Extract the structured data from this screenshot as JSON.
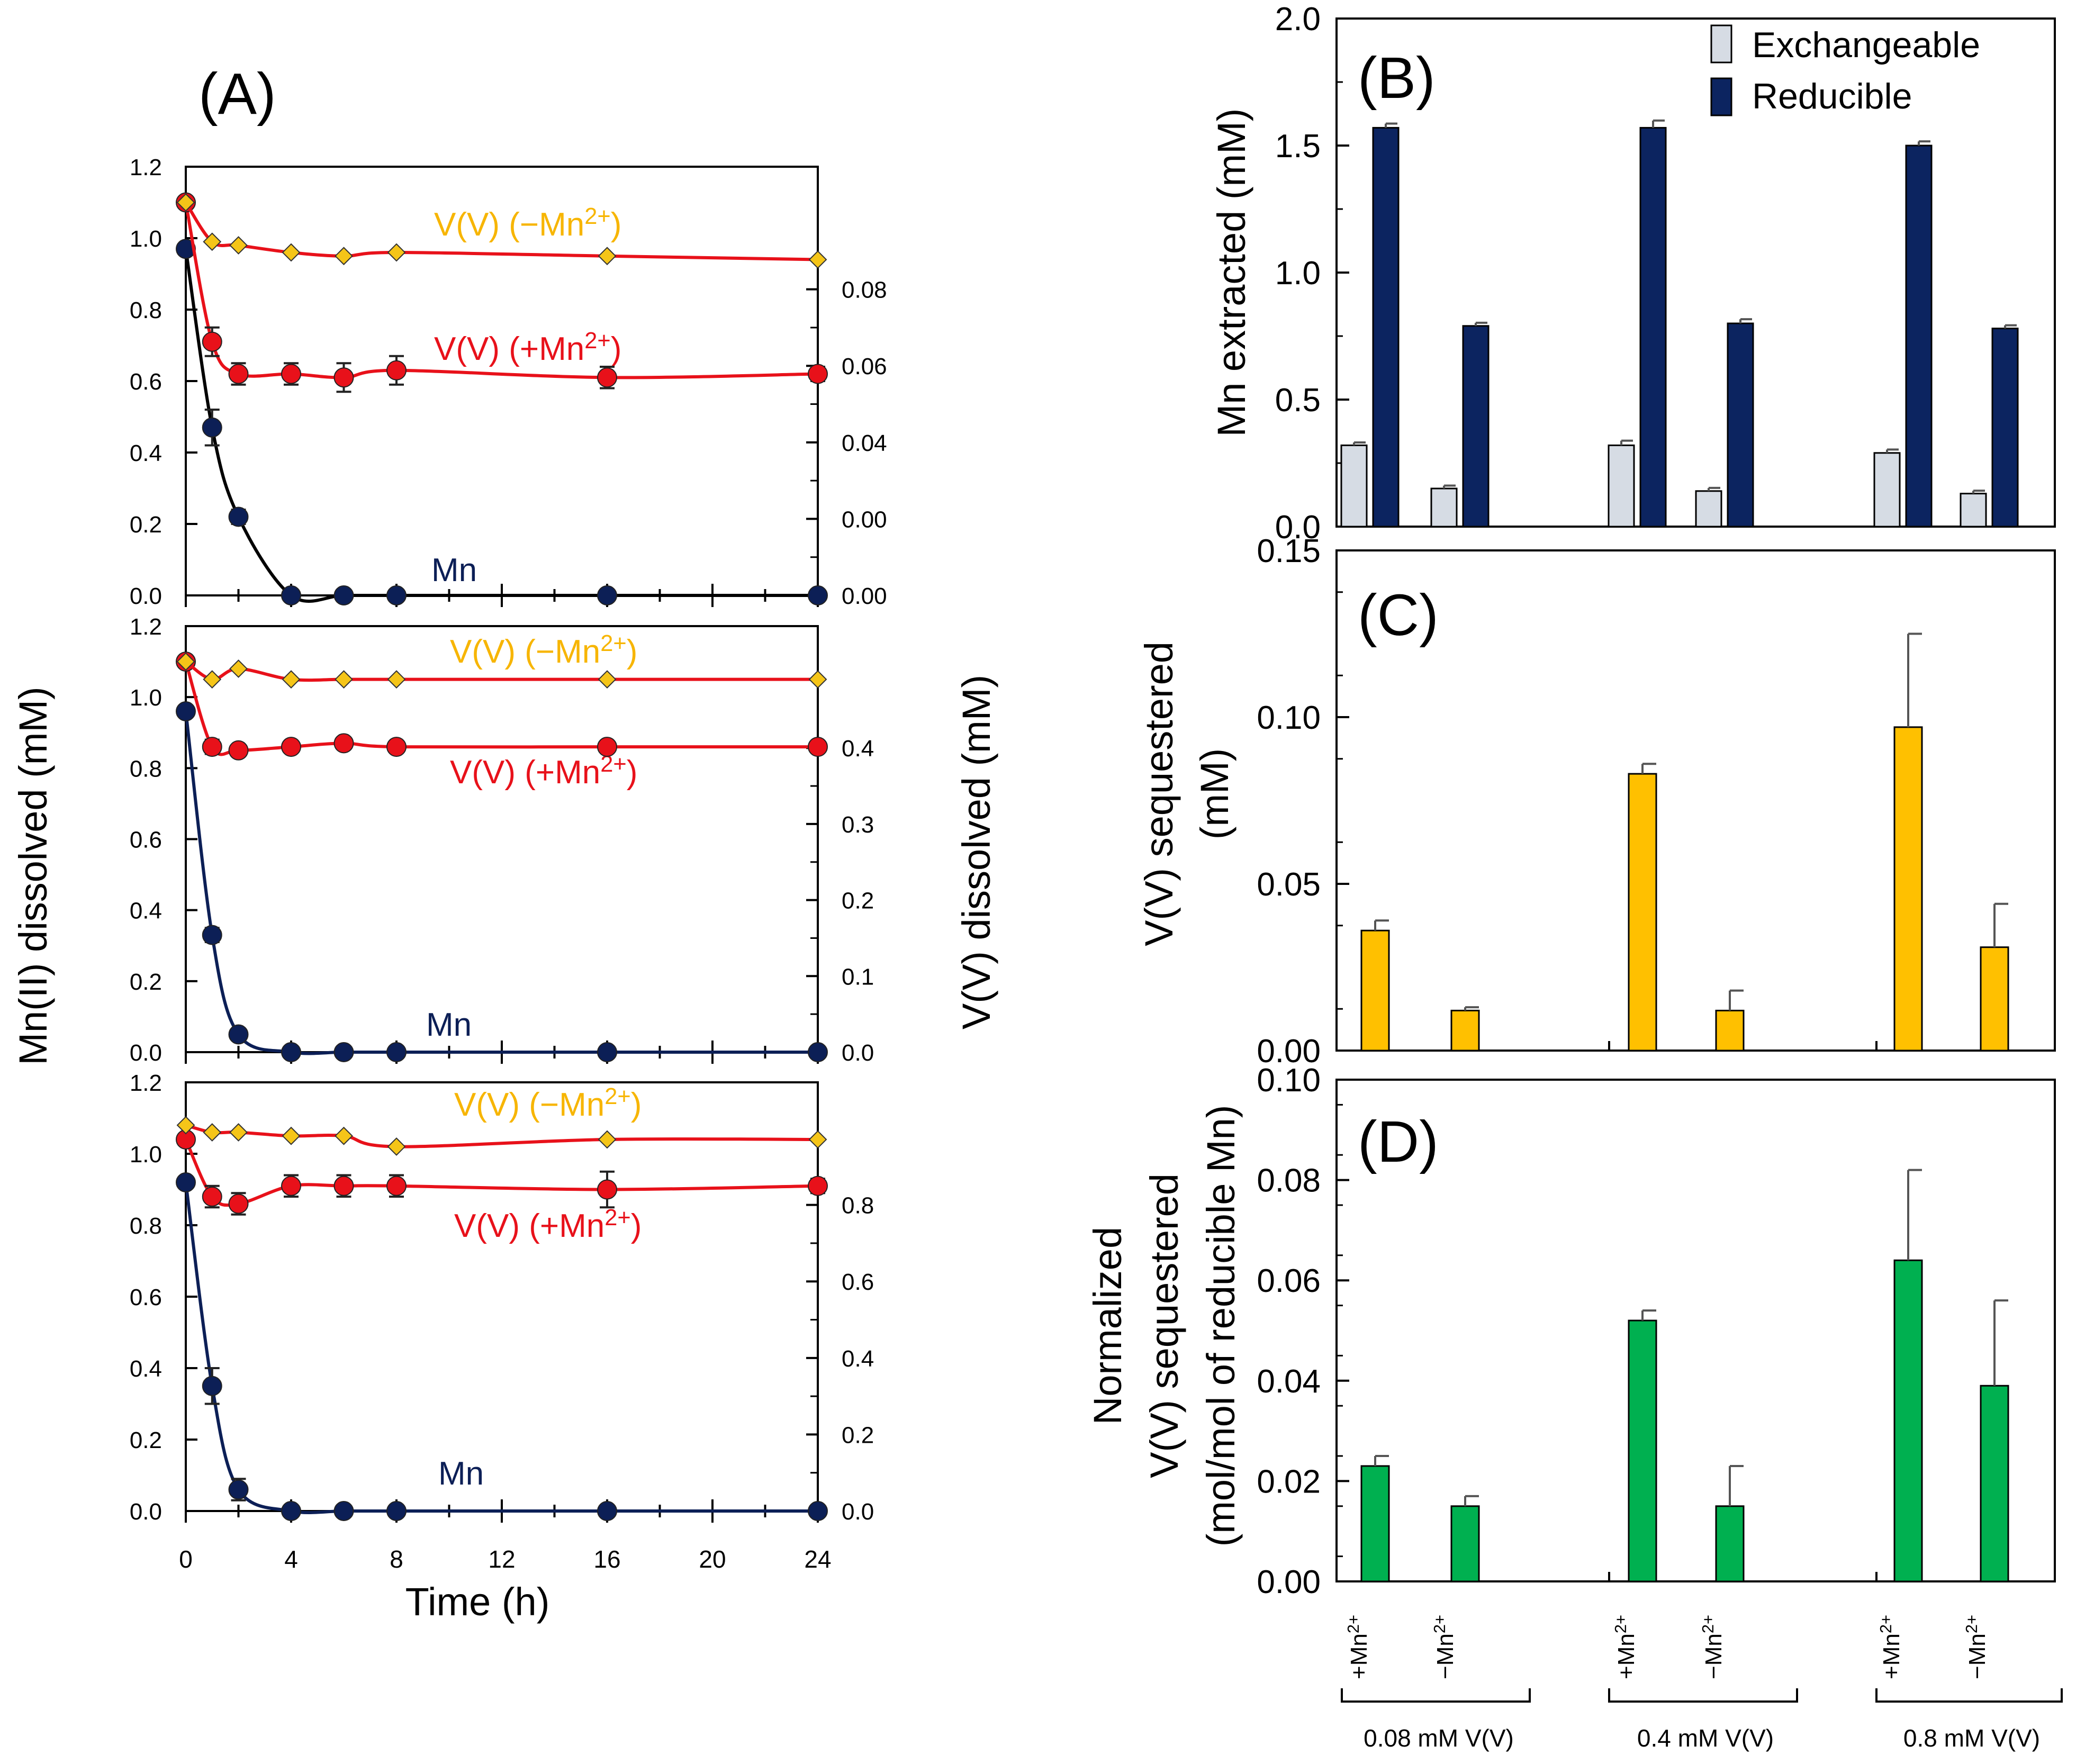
{
  "colors": {
    "gold": "#F7B500",
    "gold_marker": "#F5C518",
    "red": "#E8111A",
    "navy": "#0C1F56",
    "light_bar": "#D6DCE4",
    "dark_bar": "#0C2460",
    "amber_bar": "#FFC000",
    "green_bar": "#00B050",
    "err": "#555555"
  },
  "panel_A": {
    "label": "(A)",
    "xlabel": "Time (h)",
    "ylabel_left": "Mn(II) dissolved (mM)",
    "ylabel_right": "V(V) dissolved (mM)",
    "x_ticks": [
      "0",
      "4",
      "8",
      "12",
      "16",
      "20",
      "24"
    ],
    "left_ticks": [
      "0.0",
      "0.2",
      "0.4",
      "0.6",
      "0.8",
      "1.0",
      "1.2"
    ],
    "series_labels": {
      "v_minus_prefix": "V(V) (−Mn",
      "v_plus_prefix": "V(V) (+Mn",
      "sup": "2+",
      "close": ")",
      "mn": "Mn"
    },
    "right_ticks": [
      [
        "0.00",
        "0.00",
        "0.04",
        "0.06",
        "0.08"
      ],
      [
        "0.0",
        "0.1",
        "0.2",
        "0.3",
        "0.4"
      ],
      [
        "0.0",
        "0.2",
        "0.4",
        "0.6",
        "0.8"
      ]
    ]
  },
  "panel_B": {
    "label": "(B)",
    "ylabel": "Mn extracted (mM)",
    "ticks": [
      "0.0",
      "0.5",
      "1.0",
      "1.5",
      "2.0"
    ],
    "legend": [
      "Exchangeable",
      "Reducible"
    ]
  },
  "panel_C": {
    "label": "(C)",
    "ylabel_line1": "V(V) sequestered",
    "ylabel_line2": "(mM)",
    "ticks": [
      "0.00",
      "0.05",
      "0.10",
      "0.15"
    ]
  },
  "panel_D": {
    "label": "(D)",
    "ylabel_line1": "Normalized",
    "ylabel_line2": "V(V) sequestered",
    "ylabel_line3": "(mol/mol of reducible Mn)",
    "ticks": [
      "0.00",
      "0.02",
      "0.04",
      "0.06",
      "0.08",
      "0.10"
    ]
  },
  "treatments": {
    "plus_prefix": "+Mn",
    "minus_prefix": "−Mn",
    "sup": "2+",
    "groups": [
      "0.08 mM V(V)",
      "0.4 mM V(V)",
      "0.8 mM V(V)"
    ]
  },
  "chart_data": [
    {
      "id": "A1",
      "type": "scatter",
      "title": "(A) top: 0.08 mM V(V)",
      "xlabel": "Time (h)",
      "ylabel": "Mn(II) dissolved (mM)",
      "y2label": "V(V) dissolved (mM)",
      "xlim": [
        0,
        24
      ],
      "ylim": [
        0,
        1.2
      ],
      "series": [
        {
          "name": "Mn",
          "axis": "left",
          "x": [
            0,
            1,
            2,
            4,
            6,
            8,
            16,
            24
          ],
          "y": [
            0.97,
            0.47,
            0.22,
            0.0,
            0.0,
            0.0,
            0.0,
            0.0
          ],
          "err": [
            0,
            0.05,
            0.02,
            0,
            0,
            0,
            0,
            0
          ]
        },
        {
          "name": "V(V) (+Mn2+)",
          "axis": "left_scaled",
          "x": [
            0,
            1,
            2,
            4,
            6,
            8,
            16,
            24
          ],
          "y": [
            1.1,
            0.71,
            0.62,
            0.62,
            0.61,
            0.63,
            0.61,
            0.62
          ],
          "err": [
            0,
            0.04,
            0.03,
            0.03,
            0.04,
            0.04,
            0.03,
            0.02
          ]
        },
        {
          "name": "V(V) (−Mn2+)",
          "axis": "left_scaled",
          "x": [
            0,
            1,
            2,
            4,
            6,
            8,
            16,
            24
          ],
          "y": [
            1.1,
            0.99,
            0.98,
            0.96,
            0.95,
            0.96,
            0.95,
            0.94
          ],
          "err": [
            0,
            0,
            0,
            0,
            0,
            0,
            0,
            0
          ]
        }
      ]
    },
    {
      "id": "A2",
      "type": "scatter",
      "title": "(A) middle: 0.4 mM V(V)",
      "xlim": [
        0,
        24
      ],
      "ylim": [
        0,
        1.2
      ],
      "series": [
        {
          "name": "Mn",
          "axis": "left",
          "x": [
            0,
            1,
            2,
            4,
            6,
            8,
            16,
            24
          ],
          "y": [
            0.96,
            0.33,
            0.05,
            0.0,
            0.0,
            0.0,
            0.0,
            0.0
          ],
          "err": [
            0,
            0.02,
            0,
            0,
            0,
            0,
            0,
            0
          ]
        },
        {
          "name": "V(V) (+Mn2+)",
          "axis": "left_scaled",
          "x": [
            0,
            1,
            2,
            4,
            6,
            8,
            16,
            24
          ],
          "y": [
            1.1,
            0.86,
            0.85,
            0.86,
            0.87,
            0.86,
            0.86,
            0.86
          ],
          "err": [
            0,
            0.02,
            0.01,
            0.01,
            0.01,
            0.01,
            0.01,
            0.01
          ]
        },
        {
          "name": "V(V) (−Mn2+)",
          "axis": "left_scaled",
          "x": [
            0,
            1,
            2,
            4,
            6,
            8,
            16,
            24
          ],
          "y": [
            1.1,
            1.05,
            1.08,
            1.05,
            1.05,
            1.05,
            1.05,
            1.05
          ],
          "err": [
            0,
            0,
            0,
            0,
            0,
            0,
            0,
            0
          ]
        }
      ]
    },
    {
      "id": "A3",
      "type": "scatter",
      "title": "(A) bottom: 0.8 mM V(V)",
      "xlim": [
        0,
        24
      ],
      "ylim": [
        0,
        1.2
      ],
      "series": [
        {
          "name": "Mn",
          "axis": "left",
          "x": [
            0,
            1,
            2,
            4,
            6,
            8,
            16,
            24
          ],
          "y": [
            0.92,
            0.35,
            0.06,
            0.0,
            0.0,
            0.0,
            0.0,
            0.0
          ],
          "err": [
            0,
            0.05,
            0.03,
            0,
            0,
            0,
            0,
            0
          ]
        },
        {
          "name": "V(V) (+Mn2+)",
          "axis": "left_scaled",
          "x": [
            0,
            1,
            2,
            4,
            6,
            8,
            16,
            24
          ],
          "y": [
            1.04,
            0.88,
            0.86,
            0.91,
            0.91,
            0.91,
            0.9,
            0.91
          ],
          "err": [
            0,
            0.03,
            0.03,
            0.03,
            0.03,
            0.03,
            0.05,
            0.02
          ]
        },
        {
          "name": "V(V) (−Mn2+)",
          "axis": "left_scaled",
          "x": [
            0,
            1,
            2,
            4,
            6,
            8,
            16,
            24
          ],
          "y": [
            1.08,
            1.06,
            1.06,
            1.05,
            1.05,
            1.02,
            1.04,
            1.04
          ],
          "err": [
            0,
            0,
            0,
            0,
            0,
            0,
            0,
            0
          ]
        }
      ]
    },
    {
      "id": "B",
      "type": "bar",
      "title": "(B)",
      "ylabel": "Mn extracted (mM)",
      "ylim": [
        0,
        2.0
      ],
      "categories": [
        "0.08 mM V(V) +Mn2+",
        "0.08 mM V(V) −Mn2+",
        "0.4 mM V(V) +Mn2+",
        "0.4 mM V(V) −Mn2+",
        "0.8 mM V(V) +Mn2+",
        "0.8 mM V(V) −Mn2+"
      ],
      "series": [
        {
          "name": "Exchangeable",
          "values": [
            0.32,
            0.15,
            0.32,
            0.14,
            0.29,
            0.13
          ],
          "err": [
            0.003,
            0.003,
            0.01,
            0.004,
            0.005,
            0.003
          ]
        },
        {
          "name": "Reducible",
          "values": [
            1.57,
            0.79,
            1.57,
            0.8,
            1.5,
            0.78
          ],
          "err": [
            0.008,
            0.004,
            0.02,
            0.008,
            0.008,
            0.004
          ]
        }
      ]
    },
    {
      "id": "C",
      "type": "bar",
      "title": "(C)",
      "ylabel": "V(V) sequestered (mM)",
      "ylim": [
        0,
        0.15
      ],
      "categories": [
        "0.08 mM V(V) +Mn2+",
        "0.08 mM V(V) −Mn2+",
        "0.4 mM V(V) +Mn2+",
        "0.4 mM V(V) −Mn2+",
        "0.8 mM V(V) +Mn2+",
        "0.8 mM V(V) −Mn2+"
      ],
      "values": [
        0.036,
        0.012,
        0.083,
        0.012,
        0.097,
        0.031
      ],
      "err": [
        0.003,
        0.001,
        0.003,
        0.006,
        0.028,
        0.013
      ]
    },
    {
      "id": "D",
      "type": "bar",
      "title": "(D)",
      "ylabel": "Normalized V(V) sequestered (mol/mol of reducible Mn)",
      "ylim": [
        0,
        0.1
      ],
      "categories": [
        "0.08 mM V(V) +Mn2+",
        "0.08 mM V(V) −Mn2+",
        "0.4 mM V(V) +Mn2+",
        "0.4 mM V(V) −Mn2+",
        "0.8 mM V(V) +Mn2+",
        "0.8 mM V(V) −Mn2+"
      ],
      "values": [
        0.023,
        0.015,
        0.052,
        0.015,
        0.064,
        0.039
      ],
      "err": [
        0.002,
        0.002,
        0.002,
        0.008,
        0.018,
        0.017
      ]
    }
  ]
}
